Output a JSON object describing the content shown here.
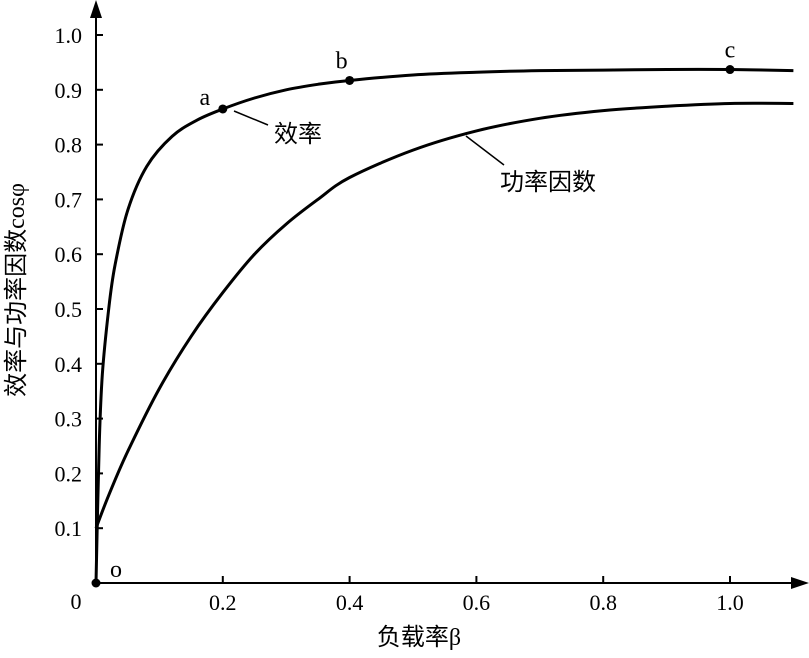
{
  "chart_data": {
    "type": "line",
    "xlabel": "负载率β",
    "ylabel": "效率与功率因数cosφ",
    "origin_label": "0",
    "xlim": [
      0,
      1.1
    ],
    "ylim": [
      0,
      1.0
    ],
    "x_ticks": [
      "0.2",
      "0.4",
      "0.6",
      "0.8",
      "1.0"
    ],
    "y_ticks": [
      "0.1",
      "0.2",
      "0.3",
      "0.4",
      "0.5",
      "0.6",
      "0.7",
      "0.8",
      "0.9",
      "1.0"
    ],
    "grid": false,
    "series": [
      {
        "name": "效率",
        "x": [
          0,
          0.005,
          0.01,
          0.02,
          0.03,
          0.05,
          0.08,
          0.12,
          0.16,
          0.2,
          0.25,
          0.3,
          0.35,
          0.4,
          0.5,
          0.6,
          0.7,
          0.8,
          0.9,
          1.0,
          1.1
        ],
        "y": [
          0,
          0.25,
          0.38,
          0.5,
          0.58,
          0.68,
          0.76,
          0.815,
          0.845,
          0.865,
          0.885,
          0.9,
          0.91,
          0.917,
          0.927,
          0.932,
          0.935,
          0.936,
          0.937,
          0.937,
          0.935
        ]
      },
      {
        "name": "功率因数",
        "x": [
          0,
          0.02,
          0.05,
          0.1,
          0.15,
          0.2,
          0.25,
          0.3,
          0.35,
          0.4,
          0.5,
          0.6,
          0.7,
          0.8,
          0.9,
          1.0,
          1.1
        ],
        "y": [
          0.1,
          0.16,
          0.24,
          0.355,
          0.45,
          0.53,
          0.6,
          0.655,
          0.7,
          0.74,
          0.79,
          0.825,
          0.848,
          0.862,
          0.87,
          0.875,
          0.875
        ]
      }
    ],
    "points": [
      {
        "label": "o",
        "x": 0,
        "y": 0
      },
      {
        "label": "a",
        "x": 0.2,
        "y": 0.865
      },
      {
        "label": "b",
        "x": 0.4,
        "y": 0.917
      },
      {
        "label": "c",
        "x": 1.0,
        "y": 0.937
      }
    ]
  }
}
